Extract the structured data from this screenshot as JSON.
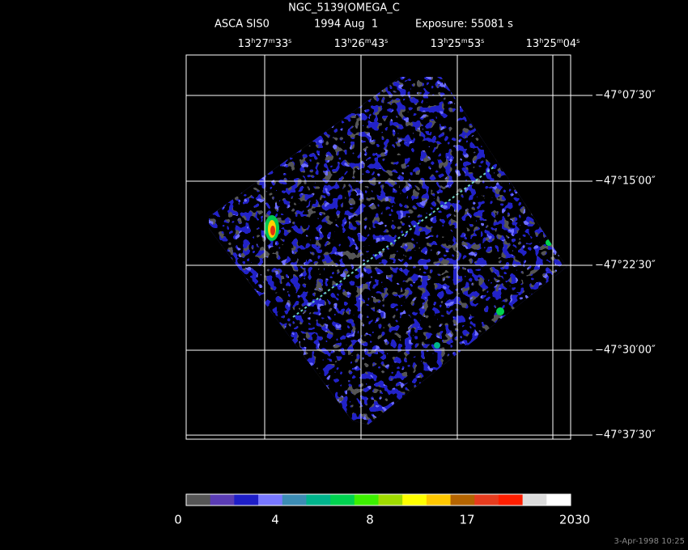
{
  "header": {
    "title": "NGC_5139(OMEGA_C",
    "instrument": "ASCA SIS0",
    "date": "1994 Aug  1",
    "exposure": "Exposure: 55081 s"
  },
  "ra_labels": [
    [
      [
        "13",
        false
      ],
      [
        "h",
        true
      ],
      [
        "27",
        false
      ],
      [
        "m",
        true
      ],
      [
        "33",
        false
      ],
      [
        "s",
        true
      ]
    ],
    [
      [
        "13",
        false
      ],
      [
        "h",
        true
      ],
      [
        "26",
        false
      ],
      [
        "m",
        true
      ],
      [
        "43",
        false
      ],
      [
        "s",
        true
      ]
    ],
    [
      [
        "13",
        false
      ],
      [
        "h",
        true
      ],
      [
        "25",
        false
      ],
      [
        "m",
        true
      ],
      [
        "53",
        false
      ],
      [
        "s",
        true
      ]
    ],
    [
      [
        "13",
        false
      ],
      [
        "h",
        true
      ],
      [
        "25",
        false
      ],
      [
        "m",
        true
      ],
      [
        "04",
        false
      ],
      [
        "s",
        true
      ]
    ]
  ],
  "dec_labels": [
    "−47°07′30″",
    "−47°15′00″",
    "−47°22′30″",
    "−47°30′00″",
    "−47°37′30″"
  ],
  "colorbar": {
    "colors": [
      "#555555",
      "#5a3cb4",
      "#1e1ec8",
      "#7878ff",
      "#3c8cb4",
      "#00b48c",
      "#00d250",
      "#3cf000",
      "#a0dc00",
      "#ffff00",
      "#ffc800",
      "#b46400",
      "#e63c1e",
      "#ff1e00",
      "#dcdcdc",
      "#ffffff"
    ],
    "labels": [
      "0",
      "4",
      "8",
      "17",
      "2030"
    ]
  },
  "timestamp": "3-Apr-1998 10:25"
}
